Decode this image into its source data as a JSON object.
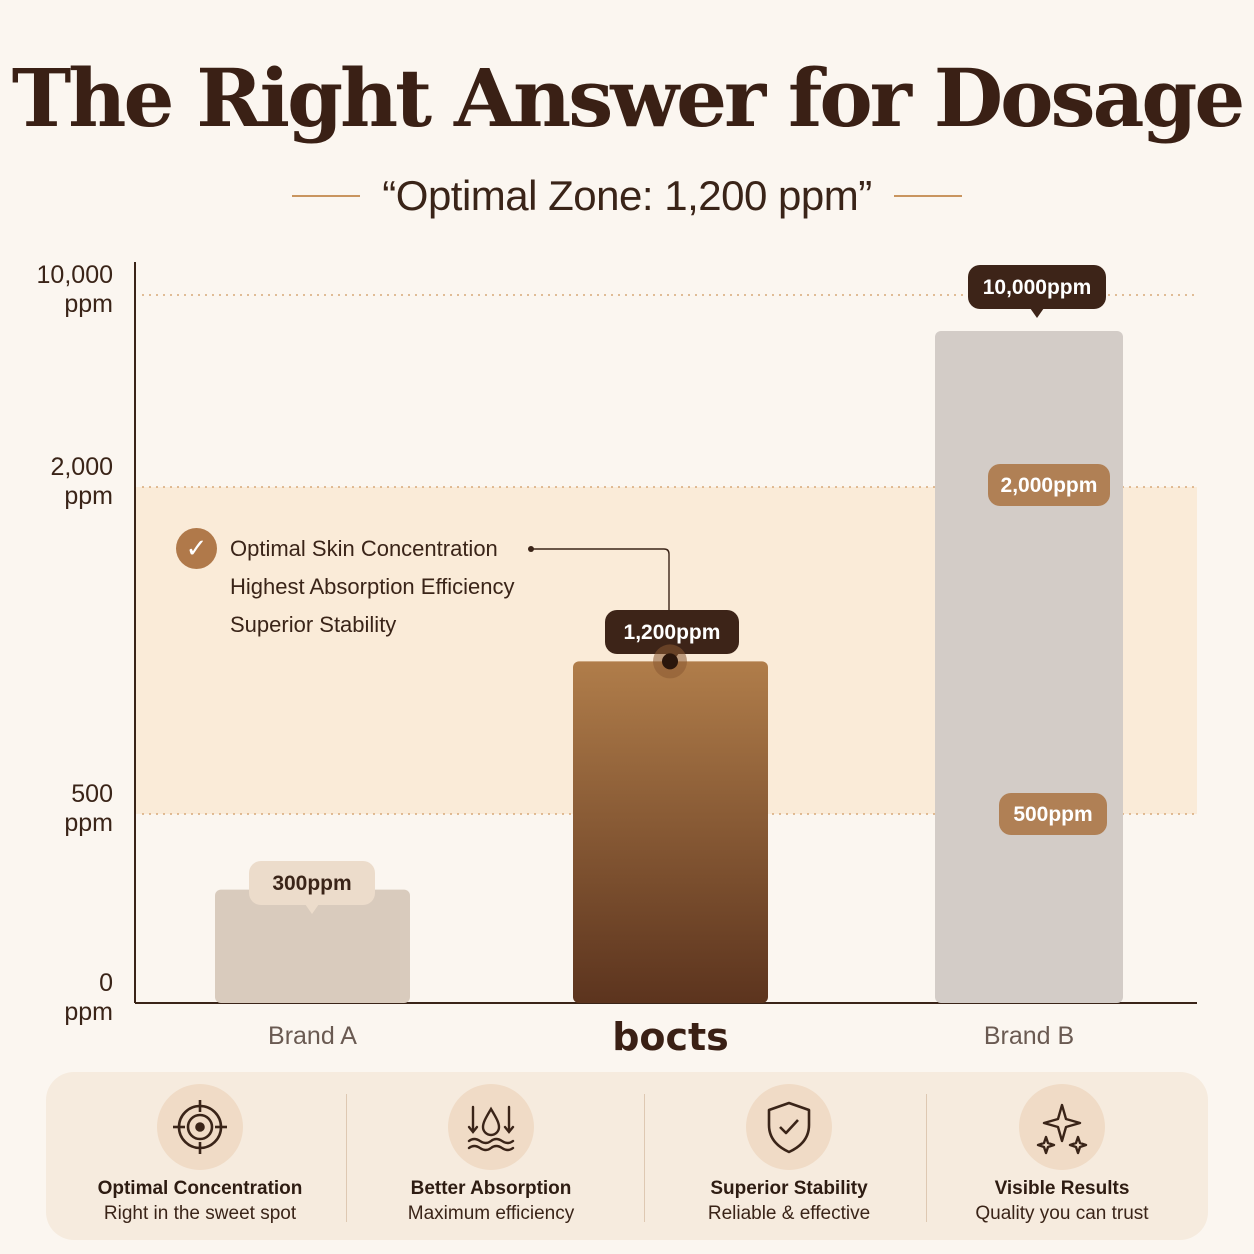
{
  "title": "The Right Answer for Dosage",
  "subtitle": "“Optimal Zone: 1,200 ppm”",
  "chart_data": {
    "type": "bar",
    "categories": [
      "Brand A",
      "bocts",
      "Brand B"
    ],
    "values": [
      300,
      1200,
      10000
    ],
    "value_labels": [
      "300ppm",
      "1,200ppm",
      "10,000ppm"
    ],
    "y_axis": {
      "scale": "non-linear (segmented)",
      "ticks": [
        {
          "value": 0,
          "label": "0",
          "unit": "ppm"
        },
        {
          "value": 500,
          "label": "500",
          "unit": "ppm"
        },
        {
          "value": 2000,
          "label": "2,000",
          "unit": "ppm"
        },
        {
          "value": 10000,
          "label": "10,000",
          "unit": "ppm"
        }
      ]
    },
    "reference_lines": [
      {
        "value": 500,
        "label": "500ppm"
      },
      {
        "value": 2000,
        "label": "2,000ppm"
      },
      {
        "value": 10000
      }
    ],
    "optimal_zone": {
      "from": 500,
      "to": 2000
    },
    "callout": [
      "Optimal Skin Concentration",
      "Highest Absorption Efficiency",
      "Superior Stability"
    ],
    "highlight_category": "bocts",
    "grid": false,
    "colors": {
      "brand_a": "#d9cbbd",
      "bocts_top": "#b07d4a",
      "bocts_bottom": "#5c341e",
      "brand_b": "#d3ccc7",
      "zone": "#faebd8",
      "dark_tag": "#3d2418",
      "light_tag": "#ecdccb",
      "accent_tag": "#b08055"
    }
  },
  "features": [
    {
      "icon": "target-icon",
      "title": "Optimal Concentration",
      "subtitle": "Right in the sweet spot"
    },
    {
      "icon": "droplet-absorption-icon",
      "title": "Better Absorption",
      "subtitle": "Maximum efficiency"
    },
    {
      "icon": "shield-check-icon",
      "title": "Superior Stability",
      "subtitle": "Reliable & effective"
    },
    {
      "icon": "sparkles-icon",
      "title": "Visible Results",
      "subtitle": "Quality you can trust"
    }
  ]
}
